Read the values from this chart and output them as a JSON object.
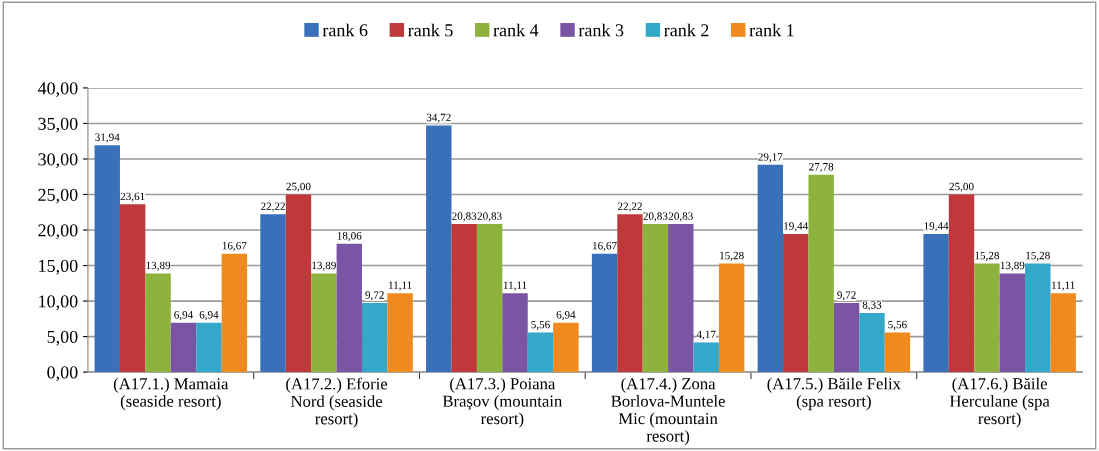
{
  "chart_data": {
    "type": "bar",
    "categories": [
      "(A17.1.) Mamaia\n(seaside resort)",
      "(A17.2.) Eforie\nNord (seaside\nresort)",
      "(A17.3.) Poiana\nBrașov (mountain\nresort)",
      "(A17.4.) Zona\nBorlova-Muntele\nMic (mountain\nresort)",
      "(A17.5.) Băile Felix\n(spa resort)",
      "(A17.6.) Băile\nHerculane (spa\nresort)"
    ],
    "series": [
      {
        "name": "rank 6",
        "color": "#3a6fba",
        "values": [
          31.94,
          22.22,
          34.72,
          16.67,
          29.17,
          19.44
        ],
        "value_labels": [
          "31,94",
          "22,22",
          "34,72",
          "16,67",
          "29,17",
          "19,44"
        ]
      },
      {
        "name": "rank 5",
        "color": "#c0393a",
        "values": [
          23.61,
          25.0,
          20.83,
          22.22,
          19.44,
          25.0
        ],
        "value_labels": [
          "23,61",
          "25,00",
          "20,83",
          "22,22",
          "19,44",
          "25,00"
        ]
      },
      {
        "name": "rank 4",
        "color": "#8db33e",
        "values": [
          13.89,
          13.89,
          20.83,
          20.83,
          27.78,
          15.28
        ],
        "value_labels": [
          "13,89",
          "13,89",
          "20,83",
          "20,83",
          "27,78",
          "15,28"
        ]
      },
      {
        "name": "rank 3",
        "color": "#7a55a3",
        "values": [
          6.94,
          18.06,
          11.11,
          20.83,
          9.72,
          13.89
        ],
        "value_labels": [
          "6,94",
          "18,06",
          "11,11",
          "20,83",
          "9,72",
          "13,89"
        ]
      },
      {
        "name": "rank 2",
        "color": "#33a8c8",
        "values": [
          6.94,
          9.72,
          5.56,
          4.17,
          8.33,
          15.28
        ],
        "value_labels": [
          "6,94",
          "9,72",
          "5,56",
          "4,17",
          "8,33",
          "15,28"
        ]
      },
      {
        "name": "rank 1",
        "color": "#f08a1e",
        "values": [
          16.67,
          11.11,
          6.94,
          15.28,
          5.56,
          11.11
        ],
        "value_labels": [
          "16,67",
          "11,11",
          "6,94",
          "15,28",
          "5,56",
          "11,11"
        ]
      }
    ],
    "ylim": [
      0,
      40
    ],
    "yticks": [
      {
        "value": 0,
        "label": "0,00"
      },
      {
        "value": 5,
        "label": "5,00"
      },
      {
        "value": 10,
        "label": "10,00"
      },
      {
        "value": 15,
        "label": "15,00"
      },
      {
        "value": 20,
        "label": "20,00"
      },
      {
        "value": 25,
        "label": "25,00"
      },
      {
        "value": 30,
        "label": "30,00"
      },
      {
        "value": 35,
        "label": "35,00"
      },
      {
        "value": 40,
        "label": "40,00"
      }
    ],
    "grid": "y",
    "legend": "top"
  }
}
